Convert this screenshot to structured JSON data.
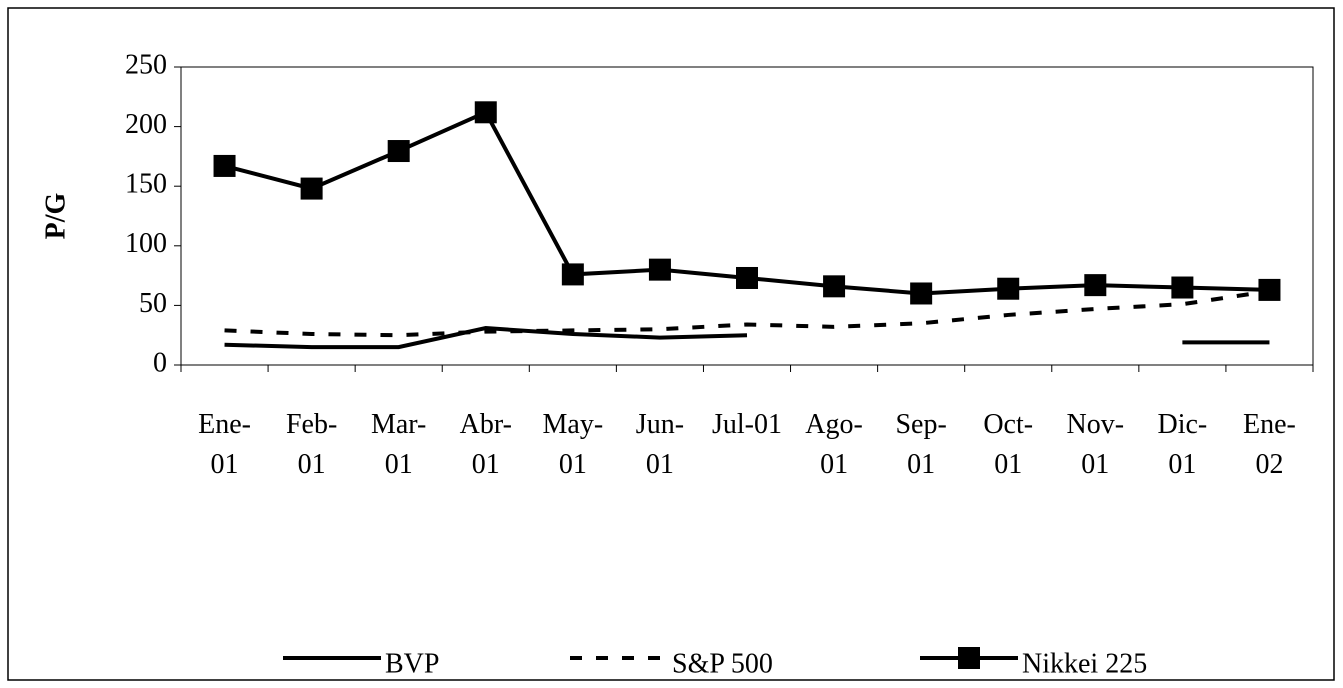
{
  "chart_data": {
    "type": "line",
    "y_label": "P/G",
    "categories": [
      "Ene-01",
      "Feb-01",
      "Mar-01",
      "Abr-01",
      "May-01",
      "Jun-01",
      "Jul-01",
      "Ago-01",
      "Sep-01",
      "Oct-01",
      "Nov-01",
      "Dic-01",
      "Ene-02"
    ],
    "series": [
      {
        "name": "BVP",
        "color": "#000000",
        "line_style": "solid",
        "marker": "none",
        "values": [
          17,
          15,
          15,
          31,
          26,
          23,
          25,
          null,
          null,
          null,
          null,
          19,
          19
        ]
      },
      {
        "name": "S&P 500",
        "color": "#000000",
        "line_style": "dashed",
        "marker": "none",
        "values": [
          29,
          26,
          25,
          28,
          29,
          30,
          34,
          32,
          35,
          42,
          47,
          51,
          62
        ]
      },
      {
        "name": "Nikkei 225",
        "color": "#000000",
        "line_style": "solid",
        "marker": "square",
        "values": [
          167,
          148,
          179.5,
          212,
          76,
          80,
          73,
          66,
          60,
          64,
          67,
          65,
          63
        ]
      }
    ],
    "ylim": [
      0,
      250
    ],
    "yticks": [
      0,
      50,
      100,
      150,
      200,
      250
    ],
    "grid": false,
    "legend": "bottom"
  }
}
